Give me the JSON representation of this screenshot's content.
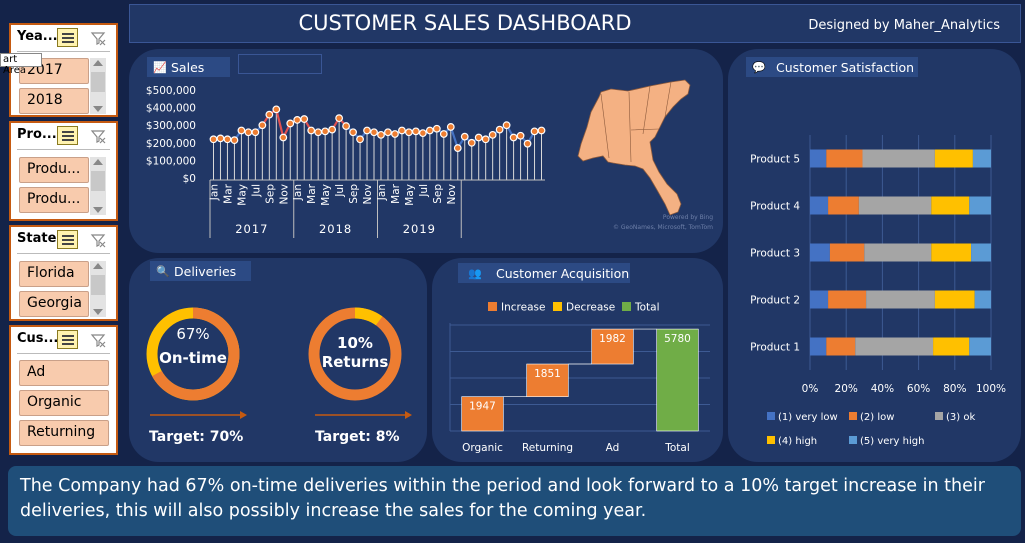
{
  "header": {
    "title": "CUSTOMER SALES DASHBOARD",
    "designer": "Designed by Maher_Analytics"
  },
  "tooltip": "art Area",
  "slicers": [
    {
      "name": "year",
      "title": "Yea...",
      "items": [
        "2017",
        "2018"
      ]
    },
    {
      "name": "product",
      "title": "Pro...",
      "items": [
        "Produ...",
        "Produ..."
      ]
    },
    {
      "name": "state",
      "title": "State",
      "items": [
        "Florida",
        "Georgia"
      ]
    },
    {
      "name": "customer",
      "title": "Cus...",
      "items": [
        "Ad",
        "Organic",
        "Returning"
      ]
    }
  ],
  "sales": {
    "title": "Sales",
    "chart_data": {
      "type": "line",
      "yticks": [
        "$500,000",
        "$400,000",
        "$300,000",
        "$200,000",
        "$100,000",
        "$0"
      ],
      "ylim": [
        0,
        500000
      ],
      "month_labels": [
        "Jan",
        "Mar",
        "May",
        "Jul",
        "Sep",
        "Nov"
      ],
      "years": [
        "2017",
        "2018",
        "2019"
      ],
      "values": [
        220000,
        225000,
        220000,
        215000,
        270000,
        260000,
        260000,
        300000,
        360000,
        390000,
        230000,
        310000,
        330000,
        335000,
        270000,
        260000,
        265000,
        275000,
        340000,
        295000,
        260000,
        220000,
        270000,
        260000,
        245000,
        260000,
        250000,
        270000,
        260000,
        265000,
        255000,
        270000,
        280000,
        250000,
        290000,
        170000,
        235000,
        200000,
        230000,
        220000,
        245000,
        275000,
        300000,
        230000,
        240000,
        195000,
        265000,
        270000
      ]
    },
    "map_credit_1": "Powered by Bing",
    "map_credit_2": "© GeoNames, Microsoft, TomTom"
  },
  "satisfaction": {
    "title": "Customer Satisfaction",
    "chart_data": {
      "type": "bar",
      "categories": [
        "Product 5",
        "Product 4",
        "Product 3",
        "Product 2",
        "Product 1"
      ],
      "series": [
        {
          "name": "(1) very low",
          "values": [
            9,
            10,
            11,
            10,
            9
          ]
        },
        {
          "name": "(2) low",
          "values": [
            20,
            17,
            19,
            21,
            16
          ]
        },
        {
          "name": "(3) ok",
          "values": [
            40,
            40,
            37,
            38,
            43
          ]
        },
        {
          "name": "(4) high",
          "values": [
            21,
            21,
            22,
            22,
            20
          ]
        },
        {
          "name": "(5) very high",
          "values": [
            10,
            12,
            11,
            9,
            12
          ]
        }
      ],
      "colors": [
        "#4472c4",
        "#ed7d31",
        "#a5a5a5",
        "#ffc000",
        "#5b9bd5"
      ],
      "xticks": [
        "0%",
        "20%",
        "40%",
        "60%",
        "80%",
        "100%"
      ]
    }
  },
  "deliveries": {
    "title": "Deliveries",
    "ontime": {
      "pct_label": "67%",
      "label": "On-time",
      "value": 67,
      "target": "Target: 70%"
    },
    "returns": {
      "pct_label": "10%",
      "label": "Returns",
      "value": 10,
      "target": "Target: 8%"
    }
  },
  "acquisition": {
    "title": "Customer Acquisition",
    "chart_data": {
      "type": "waterfall",
      "categories": [
        "Organic",
        "Returning",
        "Ad",
        "Total"
      ],
      "values": [
        1947,
        1851,
        1982,
        5780
      ],
      "legend": [
        "Increase",
        "Decrease",
        "Total"
      ],
      "colors": {
        "increase": "#ed7d31",
        "decrease": "#ffc000",
        "total": "#70ad47"
      }
    }
  },
  "summary": "The Company had 67% on-time deliveries within the period and look forward to a 10% target increase in their deliveries, this will also possibly increase the sales for the coming year."
}
